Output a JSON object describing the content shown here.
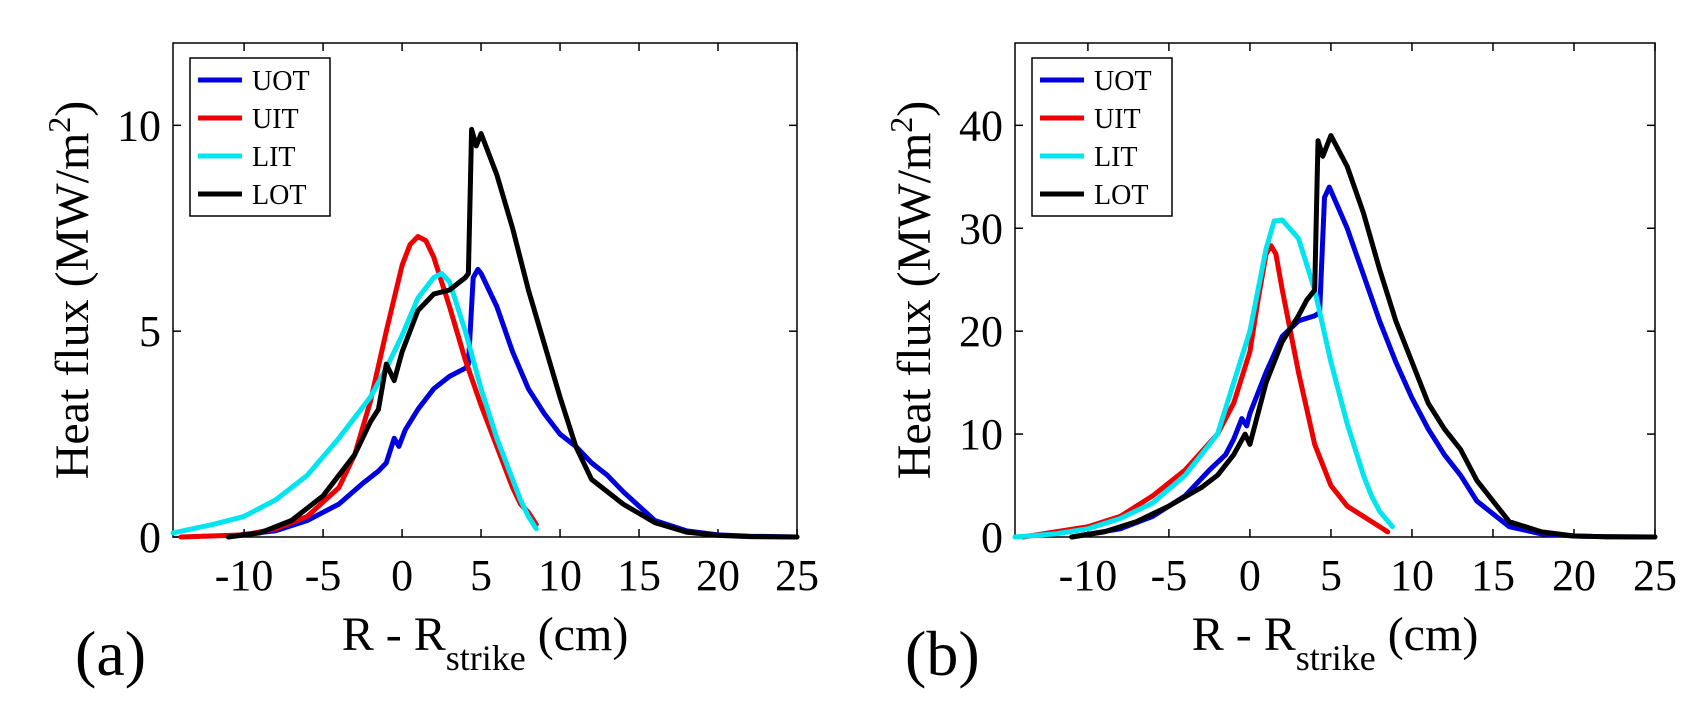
{
  "chart_data": [
    {
      "type": "line",
      "panel_label": "(a)",
      "ylabel_main": "Heat flux (MW/m",
      "ylabel_sup": "2",
      "ylabel_close": ")",
      "xlabel_main": "R - R",
      "xlabel_sub": "strike",
      "xlabel_unit": " (cm)",
      "xlim": [
        -14.5,
        25
      ],
      "ylim": [
        0,
        12
      ],
      "xticks": [
        -10,
        -5,
        0,
        5,
        10,
        15,
        20,
        25
      ],
      "xtick_labels": [
        "-10",
        "-5",
        "0",
        "5",
        "10",
        "15",
        "20",
        "25"
      ],
      "yticks": [
        0,
        5,
        10
      ],
      "ytick_labels": [
        "0",
        "5",
        "10"
      ],
      "legend_position": "top-left",
      "series": [
        {
          "name": "UOT",
          "color": "#0000dd",
          "x": [
            -11,
            -8,
            -6,
            -4,
            -2.5,
            -1.5,
            -1,
            -0.5,
            -0.2,
            0.2,
            1,
            2,
            3,
            4,
            4.2,
            4.5,
            4.8,
            5,
            6,
            7,
            8,
            9,
            10,
            11,
            12,
            13,
            14,
            16,
            18,
            20,
            22,
            25
          ],
          "y": [
            0.02,
            0.15,
            0.4,
            0.8,
            1.3,
            1.6,
            1.8,
            2.4,
            2.2,
            2.6,
            3.1,
            3.6,
            3.9,
            4.1,
            4.2,
            6.3,
            6.5,
            6.4,
            5.6,
            4.5,
            3.6,
            3.0,
            2.5,
            2.2,
            1.8,
            1.5,
            1.1,
            0.4,
            0.15,
            0.05,
            0.02,
            0
          ]
        },
        {
          "name": "UIT",
          "color": "#ee0000",
          "x": [
            -14,
            -10,
            -8,
            -6,
            -4,
            -3,
            -2,
            -1,
            0,
            0.5,
            1,
            1.5,
            2,
            3,
            4,
            5,
            6,
            7,
            7.5,
            8,
            8.5
          ],
          "y": [
            0,
            0.05,
            0.2,
            0.5,
            1.2,
            2.0,
            3.3,
            5.0,
            6.6,
            7.1,
            7.3,
            7.2,
            6.8,
            5.6,
            4.3,
            3.2,
            2.2,
            1.2,
            0.8,
            0.6,
            0.3
          ]
        },
        {
          "name": "LIT",
          "color": "#00e5f0",
          "x": [
            -14.5,
            -12,
            -10,
            -8,
            -6,
            -4,
            -2,
            -1,
            0,
            1,
            2,
            2.5,
            3,
            4,
            5,
            6,
            7,
            7.5,
            8,
            8.5
          ],
          "y": [
            0.1,
            0.3,
            0.5,
            0.9,
            1.5,
            2.4,
            3.4,
            4.1,
            4.9,
            5.8,
            6.3,
            6.4,
            6.2,
            5.0,
            3.6,
            2.4,
            1.4,
            0.9,
            0.5,
            0.2
          ]
        },
        {
          "name": "LOT",
          "color": "#000000",
          "x": [
            -11,
            -9,
            -7,
            -5,
            -3,
            -2,
            -1.5,
            -1,
            -0.5,
            0,
            1,
            2,
            3,
            4,
            4.2,
            4.4,
            4.7,
            5,
            6,
            7,
            8,
            9,
            10,
            11,
            12,
            14,
            16,
            18,
            20,
            22,
            25
          ],
          "y": [
            0,
            0.1,
            0.4,
            1.0,
            2.0,
            2.8,
            3.1,
            4.2,
            3.8,
            4.5,
            5.5,
            5.9,
            6.0,
            6.3,
            6.4,
            9.9,
            9.5,
            9.8,
            8.8,
            7.5,
            6.0,
            4.7,
            3.4,
            2.2,
            1.4,
            0.8,
            0.35,
            0.12,
            0.04,
            0.01,
            0
          ]
        }
      ]
    },
    {
      "type": "line",
      "panel_label": "(b)",
      "ylabel_main": "Heat flux (MW/m",
      "ylabel_sup": "2",
      "ylabel_close": ")",
      "xlabel_main": "R - R",
      "xlabel_sub": "strike",
      "xlabel_unit": " (cm)",
      "xlim": [
        -14.5,
        25
      ],
      "ylim": [
        0,
        48
      ],
      "xticks": [
        -10,
        -5,
        0,
        5,
        10,
        15,
        20,
        25
      ],
      "xtick_labels": [
        "-10",
        "-5",
        "0",
        "5",
        "10",
        "15",
        "20",
        "25"
      ],
      "yticks": [
        0,
        10,
        20,
        30,
        40
      ],
      "ytick_labels": [
        "0",
        "10",
        "20",
        "30",
        "40"
      ],
      "legend_position": "top-left",
      "series": [
        {
          "name": "UOT",
          "color": "#0000dd",
          "x": [
            -11,
            -8,
            -6,
            -4,
            -2.5,
            -1.5,
            -1,
            -0.5,
            -0.2,
            0,
            1,
            2,
            3,
            4,
            4.3,
            4.6,
            4.9,
            6,
            7,
            8,
            9,
            10,
            11,
            12,
            13,
            14,
            16,
            18,
            20,
            22,
            25
          ],
          "y": [
            0,
            0.8,
            2.0,
            4.0,
            6.5,
            8.0,
            9.5,
            11.5,
            10.8,
            12.0,
            16.0,
            19.5,
            21.0,
            21.5,
            21.8,
            33.0,
            34.0,
            30.0,
            25.5,
            21.0,
            17.0,
            13.5,
            10.5,
            8.0,
            6.0,
            3.5,
            1.0,
            0.3,
            0.1,
            0.02,
            0
          ]
        },
        {
          "name": "UIT",
          "color": "#ee0000",
          "x": [
            -14,
            -10,
            -8,
            -6,
            -4,
            -2,
            -1,
            0,
            0.5,
            1,
            1.3,
            1.6,
            2,
            3,
            4,
            5,
            6,
            7,
            8,
            8.5
          ],
          "y": [
            0,
            1.0,
            2.0,
            4.0,
            6.5,
            10.0,
            13.0,
            18.0,
            23.0,
            27.5,
            28.3,
            27.5,
            24.0,
            16.0,
            9.0,
            5.0,
            3.0,
            2.0,
            1.0,
            0.5
          ]
        },
        {
          "name": "LIT",
          "color": "#00e5f0",
          "x": [
            -14.5,
            -12,
            -10,
            -8,
            -6,
            -4,
            -2,
            0,
            1,
            1.5,
            2,
            3,
            4,
            5,
            6,
            7,
            7.5,
            8,
            8.8
          ],
          "y": [
            0,
            0.3,
            0.8,
            1.8,
            3.3,
            6.0,
            10.0,
            20.0,
            28.0,
            30.7,
            30.8,
            29.0,
            24.0,
            17.0,
            11.0,
            6.0,
            4.0,
            2.5,
            1.0
          ]
        },
        {
          "name": "LOT",
          "color": "#000000",
          "x": [
            -11,
            -9,
            -7,
            -5,
            -3,
            -2,
            -1,
            -0.3,
            0,
            1,
            2,
            3,
            3.5,
            4,
            4.2,
            4.5,
            5,
            6,
            7,
            8,
            9,
            10,
            11,
            12,
            13,
            14,
            16,
            18,
            20,
            22,
            25
          ],
          "y": [
            0,
            0.5,
            1.5,
            3.0,
            4.8,
            6.0,
            8.0,
            10.0,
            9.0,
            15.0,
            19.0,
            21.5,
            23.0,
            24.0,
            38.5,
            37.0,
            39.0,
            36.0,
            31.5,
            26.0,
            21.0,
            17.0,
            13.0,
            10.5,
            8.5,
            5.5,
            1.5,
            0.5,
            0.1,
            0.02,
            0
          ]
        }
      ]
    }
  ]
}
